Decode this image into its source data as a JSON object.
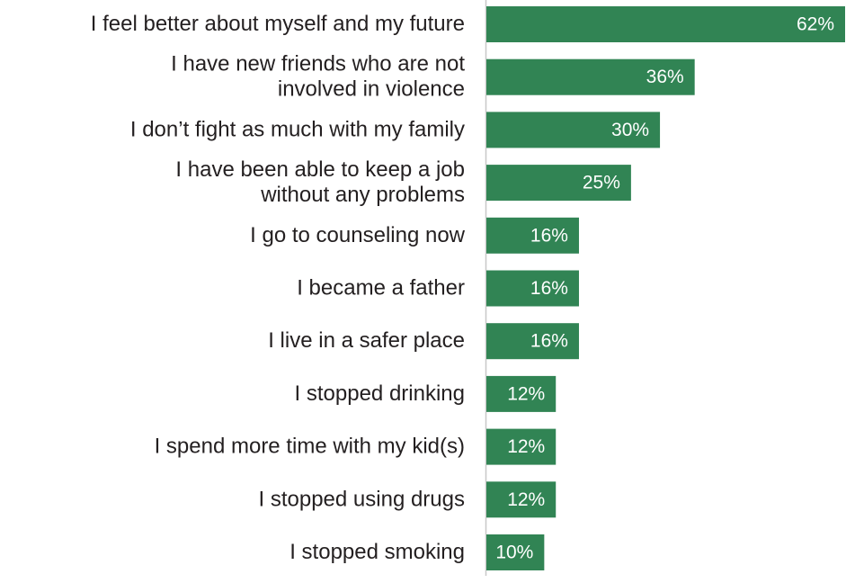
{
  "chart_data": {
    "type": "bar",
    "orientation": "horizontal",
    "categories": [
      "I feel better about myself and my future",
      "I have new friends who are not\ninvolved in violence",
      "I don’t fight as much with my family",
      "I have been able to keep a job\nwithout any problems ",
      "I go to counseling now",
      "I became a father",
      "I live in a safer place",
      "I stopped drinking",
      "I spend more time with my kid(s)",
      "I stopped using drugs",
      "I stopped smoking"
    ],
    "values": [
      62,
      36,
      30,
      25,
      16,
      16,
      16,
      12,
      12,
      12,
      10
    ],
    "value_labels": [
      "62%",
      "36%",
      "30%",
      "25%",
      "16%",
      "16%",
      "16%",
      "12%",
      "12%",
      "12%",
      "10%"
    ],
    "color": "#318454"
  }
}
